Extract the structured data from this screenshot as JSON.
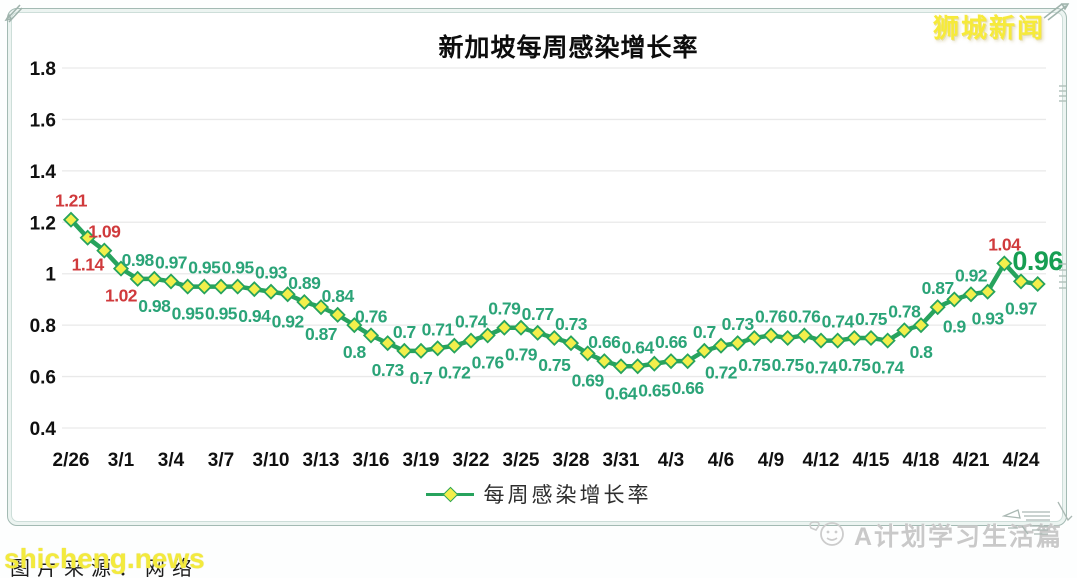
{
  "header": {
    "title": "新加坡每周感染增长率",
    "brand": "狮城新闻"
  },
  "legend": {
    "label": "每周感染增长率"
  },
  "watermarks": {
    "bottom_left_caption": "图片来源：网络",
    "bottom_left_overlay": "shicheng.news",
    "bottom_right": "A计划学习生活篇"
  },
  "chart_data": {
    "type": "line",
    "title": "新加坡每周感染增长率",
    "series_name": "每周感染增长率",
    "x_frequency": "daily",
    "x_start_label": "2/26",
    "values": [
      1.21,
      1.14,
      1.09,
      1.02,
      0.98,
      0.98,
      0.97,
      0.95,
      0.95,
      0.95,
      0.95,
      0.94,
      0.93,
      0.92,
      0.89,
      0.87,
      0.84,
      0.8,
      0.76,
      0.73,
      0.7,
      0.7,
      0.71,
      0.72,
      0.74,
      0.76,
      0.79,
      0.79,
      0.77,
      0.75,
      0.73,
      0.69,
      0.66,
      0.64,
      0.64,
      0.65,
      0.66,
      0.66,
      0.7,
      0.72,
      0.73,
      0.75,
      0.76,
      0.75,
      0.76,
      0.74,
      0.74,
      0.75,
      0.75,
      0.74,
      0.78,
      0.8,
      0.87,
      0.9,
      0.92,
      0.93,
      1.04,
      0.97,
      0.96
    ],
    "x_tick_labels": [
      "2/26",
      "3/1",
      "3/4",
      "3/7",
      "3/10",
      "3/13",
      "3/16",
      "3/19",
      "3/22",
      "3/25",
      "3/28",
      "3/31",
      "4/3",
      "4/6",
      "4/9",
      "4/12",
      "4/15",
      "4/18",
      "4/21",
      "4/24"
    ],
    "x_tick_step": 3,
    "y_ticks": [
      "1.8",
      "1.6",
      "1.4",
      "1.2",
      "1",
      "0.8",
      "0.6",
      "0.4"
    ],
    "ylim": [
      0.4,
      1.8
    ],
    "grid": "horizontal",
    "legend_position": "bottom-center",
    "label_rule": "labels alternate above/below points; red when value > 1, green otherwise; final value emphasized",
    "final_value_emphasized": 0.96,
    "colors": {
      "line": "#27a35d",
      "marker_fill": "#f3ef4b",
      "marker_stroke": "#27a35d",
      "label_red": "#d03a3c",
      "label_green": "#2ba478",
      "label_final": "#169e52",
      "axis_text": "#101010",
      "gridline": "#e9e9e9"
    }
  }
}
